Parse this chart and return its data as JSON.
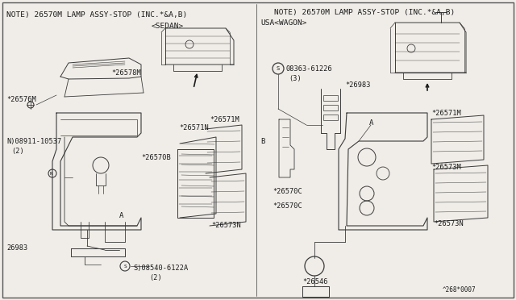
{
  "fig_width": 6.4,
  "fig_height": 3.72,
  "dpi": 100,
  "background_color": "#f0ede8",
  "line_color": "#3a3a3a",
  "text_color": "#1a1a1a",
  "border_color": "#555555",
  "left_note": "NOTE) 26570M LAMP ASSY-STOP (INC.*&A,B)",
  "right_note": "NOTE) 26570M LAMP ASSY-STOP (INC.*&A,B)",
  "sedan_label": "<SEDAN>",
  "wagon_label": "USA<WAGON>",
  "bottom_right_label": "^268*0007",
  "font_size_note": 6.8,
  "font_size_part": 6.2,
  "font_size_small": 5.5
}
